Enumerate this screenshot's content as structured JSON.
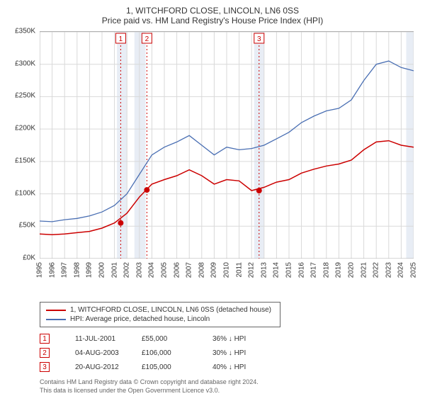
{
  "title_line1": "1, WITCHFORD CLOSE, LINCOLN, LN6 0SS",
  "title_line2": "Price paid vs. HM Land Registry's House Price Index (HPI)",
  "chart": {
    "type": "line",
    "background_color": "#ffffff",
    "grid_color": "#d9d9d9",
    "axis_color": "#b0b0b0",
    "axis_label_color": "#333333",
    "axis_fontsize": 10,
    "ylim": [
      0,
      350000
    ],
    "ytick_step": 50000,
    "ytick_labels": [
      "£0K",
      "£50K",
      "£100K",
      "£150K",
      "£200K",
      "£250K",
      "£300K",
      "£350K"
    ],
    "x_years": [
      1995,
      1996,
      1997,
      1998,
      1999,
      2000,
      2001,
      2002,
      2003,
      2004,
      2005,
      2006,
      2007,
      2008,
      2009,
      2010,
      2011,
      2012,
      2013,
      2014,
      2015,
      2016,
      2017,
      2018,
      2019,
      2020,
      2021,
      2022,
      2023,
      2024,
      2025
    ],
    "shaded_bands": [
      {
        "x_start": 2001.2,
        "x_end": 2002.0,
        "fill": "#e8edf5"
      },
      {
        "x_start": 2002.6,
        "x_end": 2003.5,
        "fill": "#e8edf5"
      },
      {
        "x_start": 2012.2,
        "x_end": 2013.0,
        "fill": "#e8edf5"
      },
      {
        "x_start": 2024.4,
        "x_end": 2025.2,
        "fill": "#e8edf5"
      }
    ],
    "series": [
      {
        "name": "hpi",
        "label": "HPI: Average price, detached house, Lincoln",
        "color": "#4a6fb3",
        "line_width": 1.3,
        "points": [
          [
            1995,
            58000
          ],
          [
            1996,
            57000
          ],
          [
            1997,
            60000
          ],
          [
            1998,
            62000
          ],
          [
            1999,
            66000
          ],
          [
            2000,
            72000
          ],
          [
            2001,
            82000
          ],
          [
            2002,
            100000
          ],
          [
            2003,
            130000
          ],
          [
            2004,
            160000
          ],
          [
            2005,
            172000
          ],
          [
            2006,
            180000
          ],
          [
            2007,
            190000
          ],
          [
            2008,
            175000
          ],
          [
            2009,
            160000
          ],
          [
            2010,
            172000
          ],
          [
            2011,
            168000
          ],
          [
            2012,
            170000
          ],
          [
            2013,
            175000
          ],
          [
            2014,
            185000
          ],
          [
            2015,
            195000
          ],
          [
            2016,
            210000
          ],
          [
            2017,
            220000
          ],
          [
            2018,
            228000
          ],
          [
            2019,
            232000
          ],
          [
            2020,
            245000
          ],
          [
            2021,
            275000
          ],
          [
            2022,
            300000
          ],
          [
            2023,
            305000
          ],
          [
            2024,
            295000
          ],
          [
            2025,
            290000
          ]
        ]
      },
      {
        "name": "price_paid",
        "label": "1, WITCHFORD CLOSE, LINCOLN, LN6 0SS (detached house)",
        "color": "#cc0000",
        "line_width": 1.5,
        "points": [
          [
            1995,
            38000
          ],
          [
            1996,
            37000
          ],
          [
            1997,
            38000
          ],
          [
            1998,
            40000
          ],
          [
            1999,
            42000
          ],
          [
            2000,
            47000
          ],
          [
            2001,
            55000
          ],
          [
            2002,
            70000
          ],
          [
            2003,
            95000
          ],
          [
            2004,
            115000
          ],
          [
            2005,
            122000
          ],
          [
            2006,
            128000
          ],
          [
            2007,
            137000
          ],
          [
            2008,
            128000
          ],
          [
            2009,
            115000
          ],
          [
            2010,
            122000
          ],
          [
            2011,
            120000
          ],
          [
            2012,
            105000
          ],
          [
            2013,
            110000
          ],
          [
            2014,
            118000
          ],
          [
            2015,
            122000
          ],
          [
            2016,
            132000
          ],
          [
            2017,
            138000
          ],
          [
            2018,
            143000
          ],
          [
            2019,
            146000
          ],
          [
            2020,
            152000
          ],
          [
            2021,
            168000
          ],
          [
            2022,
            180000
          ],
          [
            2023,
            182000
          ],
          [
            2024,
            175000
          ],
          [
            2025,
            172000
          ]
        ]
      }
    ],
    "sale_markers": [
      {
        "num": "1",
        "year": 2001.5,
        "price": 55000,
        "show_on_chart": true
      },
      {
        "num": "2",
        "year": 2003.6,
        "price": 106000,
        "show_on_chart": true
      },
      {
        "num": "3",
        "year": 2012.6,
        "price": 105000,
        "show_on_chart": true
      }
    ],
    "marker_box_color": "#cc0000",
    "marker_vline_color": "#cc0000",
    "marker_dot_color": "#cc0000"
  },
  "legend": {
    "items": [
      {
        "color": "#cc0000",
        "label": "1, WITCHFORD CLOSE, LINCOLN, LN6 0SS (detached house)"
      },
      {
        "color": "#4a6fb3",
        "label": "HPI: Average price, detached house, Lincoln"
      }
    ]
  },
  "markers_table": [
    {
      "num": "1",
      "date": "11-JUL-2001",
      "price": "£55,000",
      "delta": "36% ↓ HPI"
    },
    {
      "num": "2",
      "date": "04-AUG-2003",
      "price": "£106,000",
      "delta": "30% ↓ HPI"
    },
    {
      "num": "3",
      "date": "20-AUG-2012",
      "price": "£105,000",
      "delta": "40% ↓ HPI"
    }
  ],
  "attribution": {
    "line1": "Contains HM Land Registry data © Crown copyright and database right 2024.",
    "line2": "This data is licensed under the Open Government Licence v3.0."
  }
}
